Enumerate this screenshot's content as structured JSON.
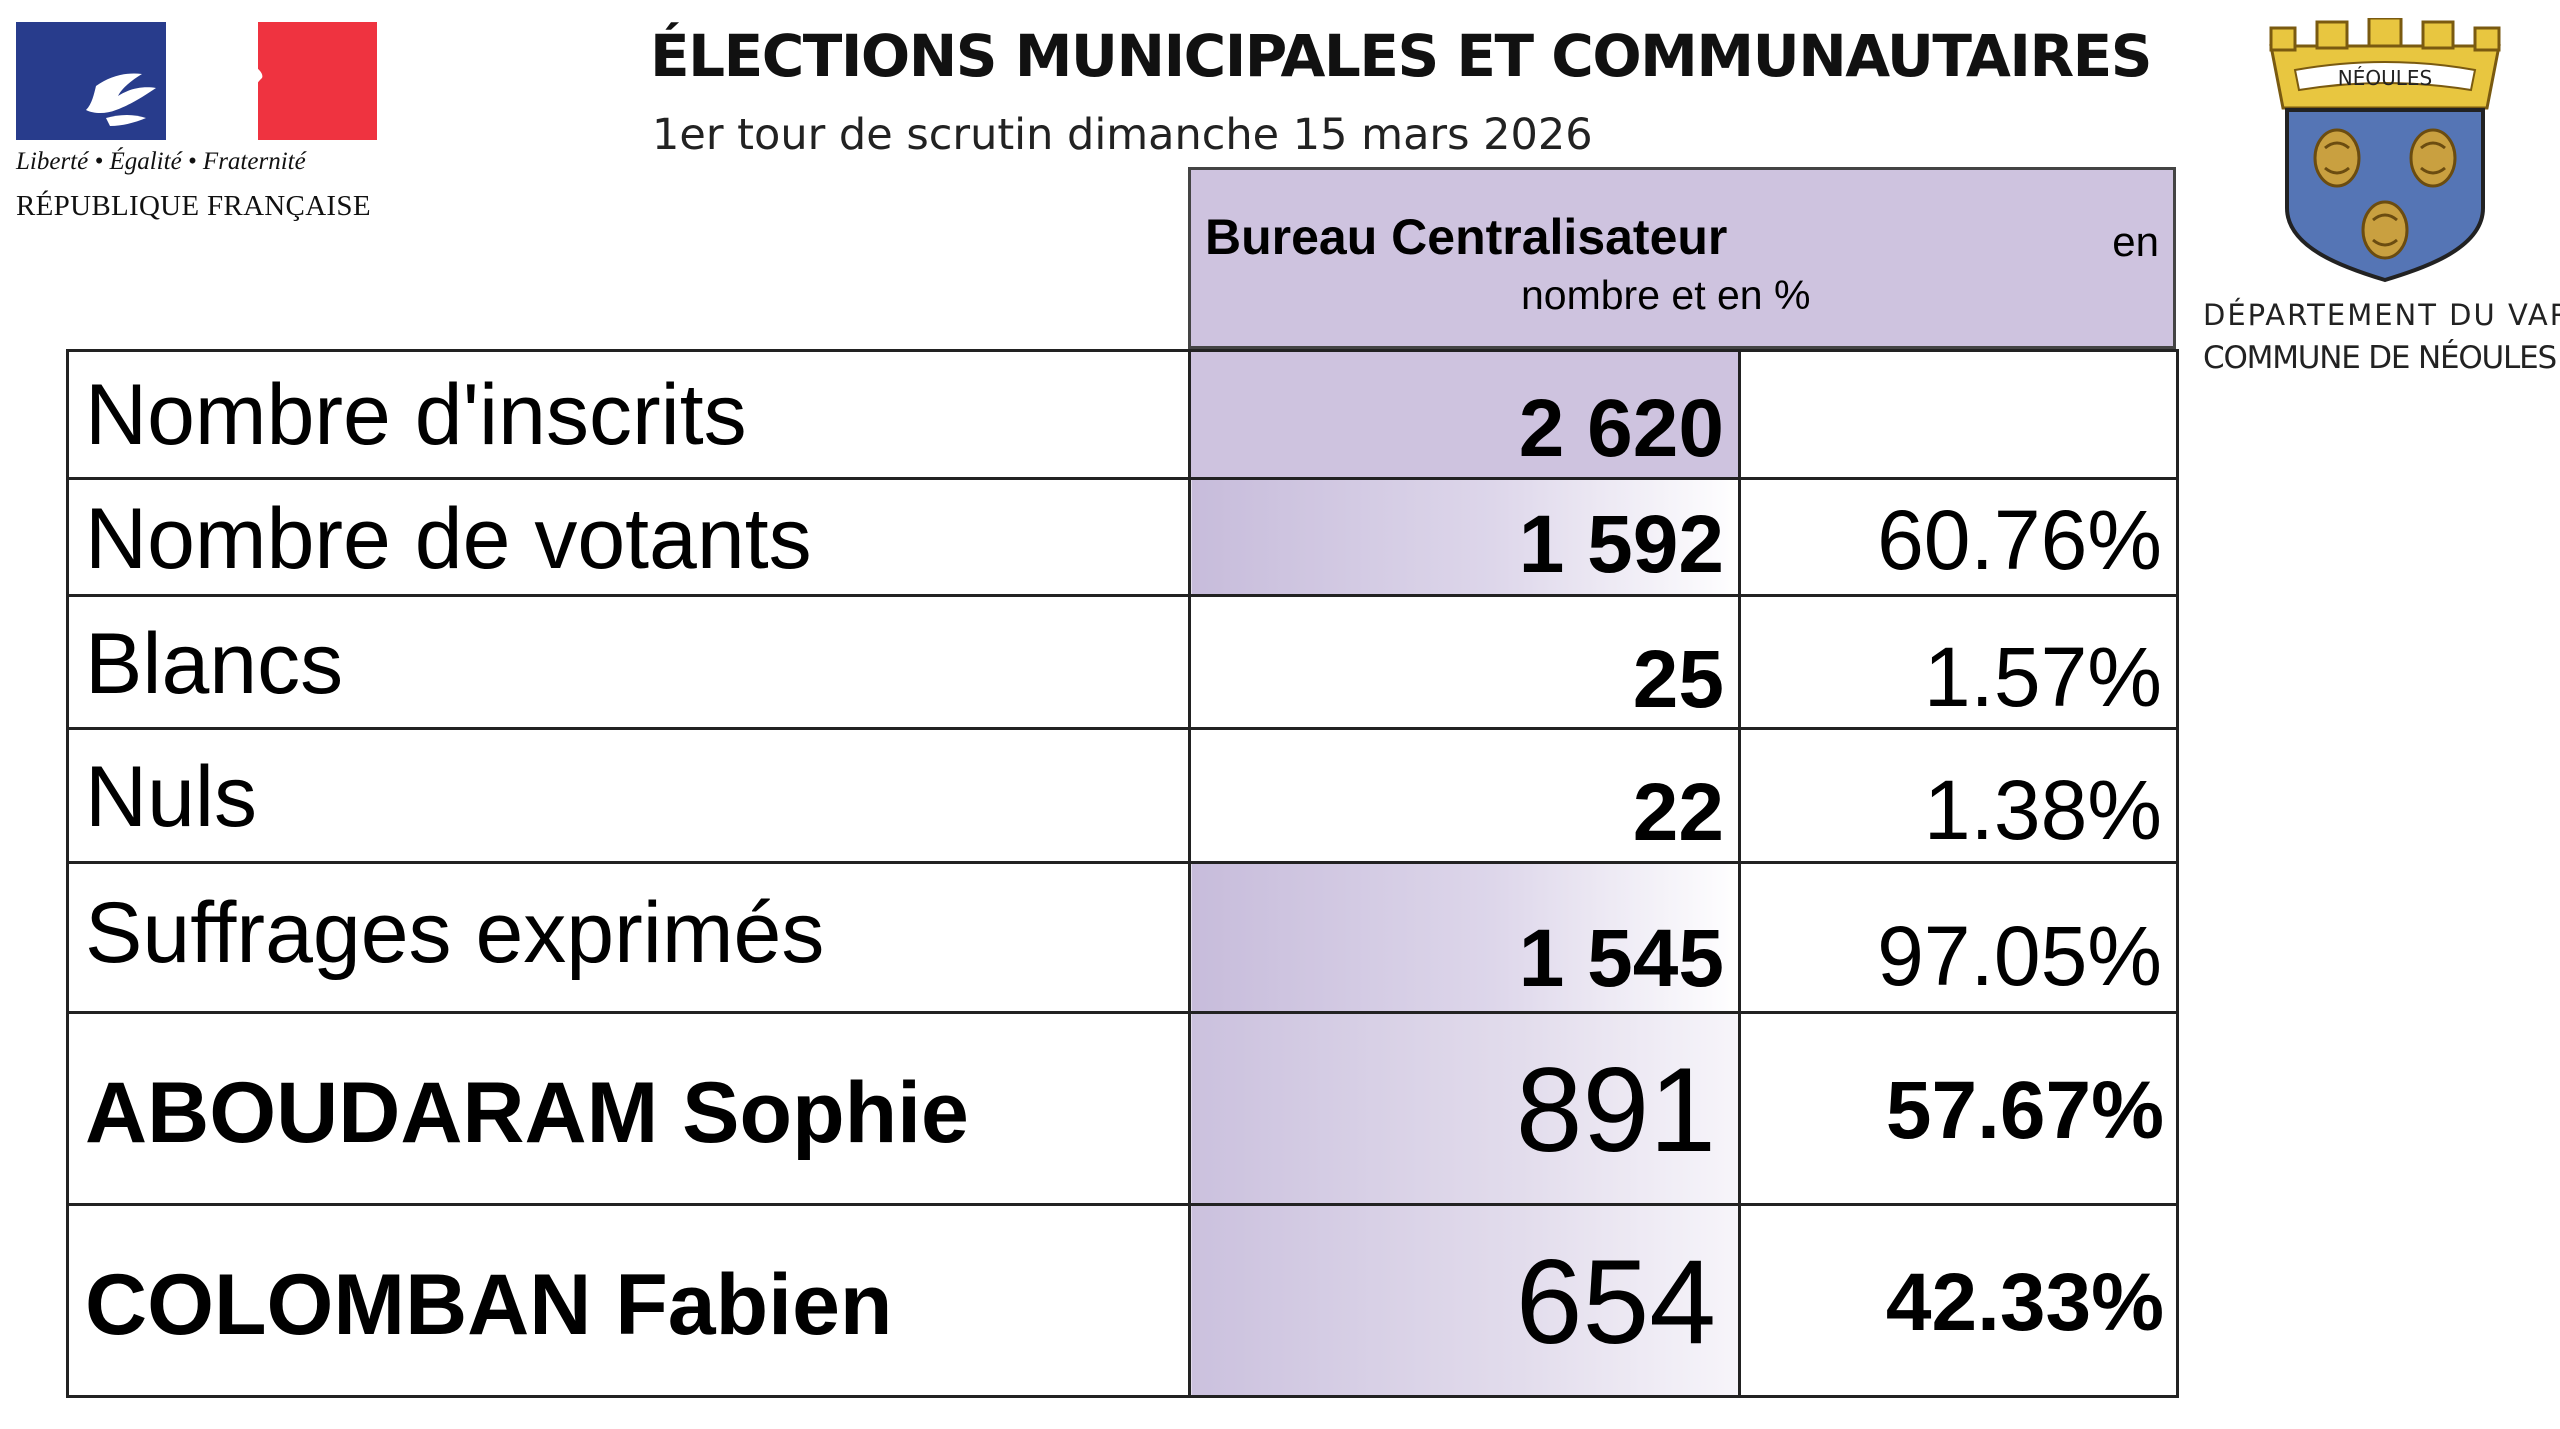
{
  "header": {
    "republique": {
      "motto": "Liberté • Égalité • Fraternité",
      "name": "RÉPUBLIQUE FRANÇAISE",
      "colors": {
        "blue": "#283c8c",
        "red": "#ef3340"
      }
    },
    "title": "ÉLECTIONS MUNICIPALES ET COMMUNAUTAIRES",
    "subtitle": "1er tour de scrutin dimanche 15 mars 2026",
    "commune": {
      "crest_banner": "NÉOULES",
      "department": "DÉPARTEMENT DU VAR",
      "name": "COMMUNE DE NÉOULES"
    }
  },
  "bureau": {
    "title": "Bureau Centralisateur",
    "en": "en",
    "subtitle": "nombre et en %",
    "header_color": "#cec3df"
  },
  "rows": [
    {
      "label": "Nombre d'inscrits",
      "count": "2 620",
      "pct": ""
    },
    {
      "label": "Nombre de votants",
      "count": "1 592",
      "pct": "60.76%"
    },
    {
      "label": "Blancs",
      "count": "25",
      "pct": "1.57%"
    },
    {
      "label": "Nuls",
      "count": "22",
      "pct": "1.38%"
    },
    {
      "label": "Suffrages exprimés",
      "count": "1 545",
      "pct": "97.05%"
    }
  ],
  "candidates": [
    {
      "name": "ABOUDARAM Sophie",
      "votes": "891",
      "pct": "57.67%"
    },
    {
      "name": "COLOMBAN Fabien",
      "votes": "654",
      "pct": "42.33%"
    }
  ]
}
